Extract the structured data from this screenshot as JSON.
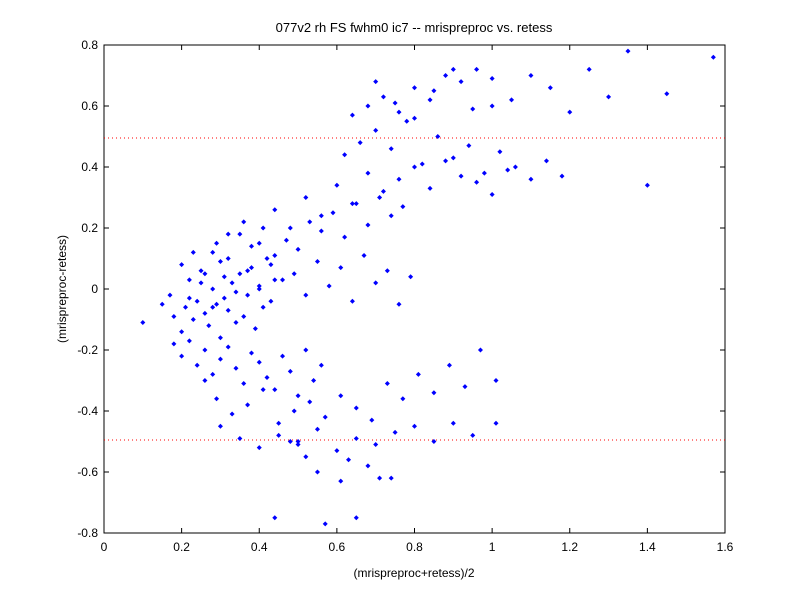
{
  "chart_data": {
    "type": "scatter",
    "title": "077v2 rh FS fwhm0 ic7 -- mrispreproc vs. retess",
    "xlabel": "(mrispreproc+retess)/2",
    "ylabel": "(mrispreproc-retess)",
    "xlim": [
      0,
      1.6
    ],
    "ylim": [
      -0.8,
      0.8
    ],
    "x_ticks": [
      "0",
      "0.2",
      "0.4",
      "0.6",
      "0.8",
      "1",
      "1.2",
      "1.4",
      "1.6"
    ],
    "y_ticks": [
      "-0.8",
      "-0.6",
      "-0.4",
      "-0.2",
      "0",
      "0.2",
      "0.4",
      "0.6",
      "0.8"
    ],
    "reference_lines": [
      0.495,
      -0.495
    ],
    "grid": false,
    "colors": {
      "points": "#0000ff",
      "reference_lines": "#ff0000",
      "axes": "#000000"
    },
    "series": [
      {
        "x": [
          0.1,
          0.15,
          0.17,
          0.18,
          0.2,
          0.21,
          0.22,
          0.23,
          0.24,
          0.25,
          0.26,
          0.27,
          0.28,
          0.29,
          0.3,
          0.3,
          0.31,
          0.32,
          0.33,
          0.34,
          0.35,
          0.36,
          0.37,
          0.38,
          0.39,
          0.4,
          0.41,
          0.42,
          0.43,
          0.44,
          0.18,
          0.2,
          0.22,
          0.24,
          0.26,
          0.28,
          0.3,
          0.32,
          0.34,
          0.36,
          0.38,
          0.4,
          0.42,
          0.44,
          0.46,
          0.48,
          0.5,
          0.52,
          0.54,
          0.56,
          0.2,
          0.23,
          0.26,
          0.29,
          0.32,
          0.35,
          0.38,
          0.41,
          0.44,
          0.47,
          0.5,
          0.53,
          0.56,
          0.59,
          0.62,
          0.65,
          0.68,
          0.71,
          0.74,
          0.77,
          0.22,
          0.25,
          0.28,
          0.31,
          0.34,
          0.37,
          0.4,
          0.43,
          0.46,
          0.49,
          0.52,
          0.55,
          0.58,
          0.61,
          0.64,
          0.67,
          0.7,
          0.73,
          0.76,
          0.79,
          0.26,
          0.29,
          0.33,
          0.37,
          0.41,
          0.45,
          0.49,
          0.53,
          0.57,
          0.61,
          0.65,
          0.69,
          0.73,
          0.77,
          0.81,
          0.85,
          0.89,
          0.93,
          0.97,
          1.01,
          0.28,
          0.32,
          0.36,
          0.4,
          0.44,
          0.48,
          0.52,
          0.56,
          0.6,
          0.64,
          0.68,
          0.72,
          0.76,
          0.8,
          0.84,
          0.88,
          0.92,
          0.96,
          1.0,
          1.04,
          0.62,
          0.66,
          0.7,
          0.74,
          0.78,
          0.82,
          0.86,
          0.9,
          0.94,
          0.98,
          1.02,
          1.06,
          1.1,
          1.14,
          1.18,
          0.64,
          0.68,
          0.72,
          0.76,
          0.8,
          0.84,
          0.88,
          0.92,
          0.96,
          1.0,
          0.7,
          0.75,
          0.8,
          0.85,
          0.9,
          0.95,
          1.0,
          1.05,
          1.1,
          1.15,
          1.2,
          1.25,
          1.3,
          1.35,
          1.4,
          1.45,
          1.57,
          0.4,
          0.45,
          0.5,
          0.55,
          0.6,
          0.65,
          0.7,
          0.75,
          0.8,
          0.85,
          0.9,
          0.95,
          1.01,
          0.3,
          0.35,
          0.5,
          0.57,
          0.61,
          0.63,
          0.65,
          0.71,
          0.74,
          0.68,
          0.55,
          0.48,
          0.52,
          0.44
        ],
        "y": [
          -0.11,
          -0.05,
          -0.02,
          -0.09,
          -0.14,
          -0.06,
          0.03,
          -0.1,
          -0.04,
          0.06,
          -0.08,
          -0.12,
          0.0,
          -0.05,
          0.09,
          -0.16,
          -0.03,
          -0.07,
          0.02,
          -0.11,
          0.05,
          -0.09,
          -0.02,
          0.07,
          -0.13,
          0.01,
          -0.06,
          0.1,
          -0.04,
          0.03,
          -0.18,
          -0.22,
          -0.17,
          -0.25,
          -0.2,
          -0.28,
          -0.23,
          -0.19,
          -0.26,
          -0.31,
          -0.21,
          -0.24,
          -0.29,
          -0.33,
          -0.22,
          -0.27,
          -0.35,
          -0.2,
          -0.3,
          -0.25,
          0.08,
          0.12,
          0.05,
          0.15,
          0.1,
          0.18,
          0.14,
          0.2,
          0.11,
          0.16,
          0.13,
          0.22,
          0.19,
          0.25,
          0.17,
          0.28,
          0.21,
          0.3,
          0.24,
          0.27,
          -0.03,
          0.02,
          -0.06,
          0.04,
          -0.01,
          0.06,
          0.0,
          0.08,
          0.03,
          0.05,
          -0.02,
          0.09,
          0.01,
          0.07,
          -0.04,
          0.11,
          0.02,
          0.06,
          -0.05,
          0.04,
          -0.3,
          -0.36,
          -0.41,
          -0.38,
          -0.33,
          -0.44,
          -0.4,
          -0.37,
          -0.42,
          -0.35,
          -0.39,
          -0.43,
          -0.31,
          -0.36,
          -0.28,
          -0.34,
          -0.25,
          -0.32,
          -0.2,
          -0.3,
          0.12,
          0.18,
          0.22,
          0.15,
          0.26,
          0.2,
          0.3,
          0.24,
          0.34,
          0.28,
          0.38,
          0.32,
          0.36,
          0.4,
          0.33,
          0.42,
          0.37,
          0.35,
          0.31,
          0.39,
          0.44,
          0.48,
          0.52,
          0.46,
          0.55,
          0.41,
          0.5,
          0.43,
          0.47,
          0.38,
          0.45,
          0.4,
          0.36,
          0.42,
          0.37,
          0.57,
          0.6,
          0.63,
          0.58,
          0.66,
          0.62,
          0.7,
          0.68,
          0.72,
          0.6,
          0.68,
          0.61,
          0.56,
          0.65,
          0.72,
          0.59,
          0.69,
          0.62,
          0.7,
          0.66,
          0.58,
          0.72,
          0.63,
          0.78,
          0.34,
          0.64,
          0.76,
          -0.52,
          -0.48,
          -0.5,
          -0.46,
          -0.53,
          -0.49,
          -0.51,
          -0.47,
          -0.45,
          -0.5,
          -0.44,
          -0.48,
          -0.44,
          -0.45,
          -0.49,
          -0.51,
          -0.77,
          -0.63,
          -0.56,
          -0.75,
          -0.62,
          -0.62,
          -0.58,
          -0.6,
          -0.5,
          -0.55,
          -0.75
        ]
      }
    ]
  }
}
